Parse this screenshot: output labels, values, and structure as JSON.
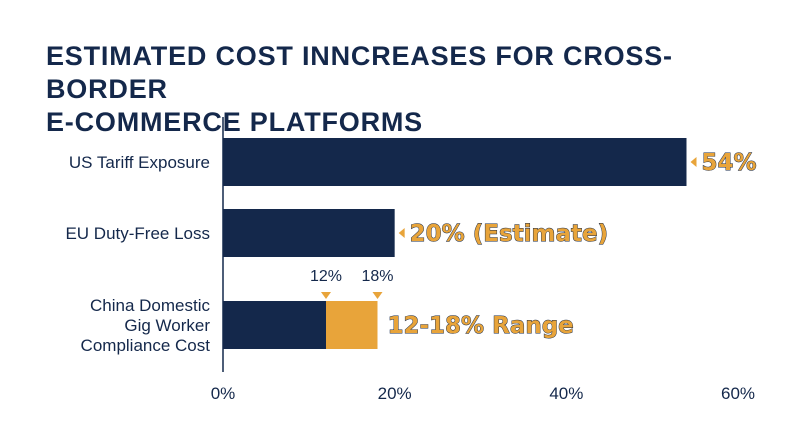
{
  "chart_data": {
    "type": "bar",
    "orientation": "horizontal",
    "title_lines": [
      "ESTIMATED COST INNCREASES FOR CROSS-BORDER",
      "E-COMMERCE PLATFORMS"
    ],
    "categories": [
      [
        "US Tariff Exposure"
      ],
      [
        "EU Duty-Free Loss"
      ],
      [
        "China Domestic",
        "Gig Worker",
        "Compliance Cost"
      ]
    ],
    "values": [
      54,
      20,
      18
    ],
    "range_segment": {
      "category_index": 2,
      "low": 12,
      "high": 18,
      "low_label": "12%",
      "high_label": "18%"
    },
    "value_labels": [
      "54%",
      "20% (Estimate)",
      "12-18% Range"
    ],
    "xlim": [
      0,
      60
    ],
    "x_ticks": [
      0,
      20,
      40,
      60
    ],
    "x_tick_labels": [
      "0%",
      "20%",
      "40%",
      "60%"
    ],
    "grid": false,
    "colors": {
      "bar": "#14284b",
      "accent": "#e8a43a",
      "text": "#14284b"
    }
  }
}
